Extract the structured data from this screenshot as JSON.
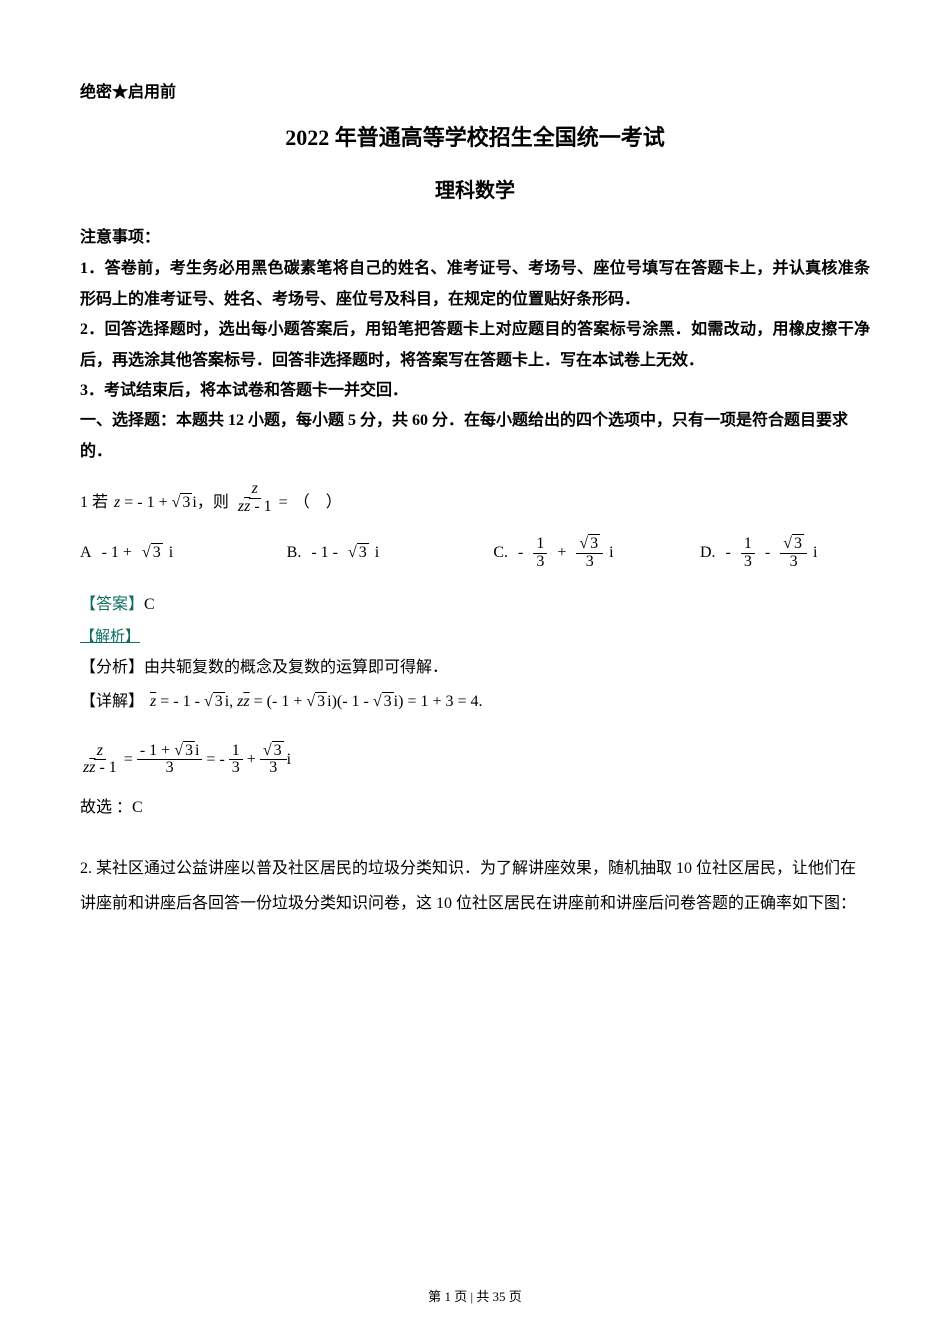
{
  "header": {
    "confidential": "绝密★启用前"
  },
  "titles": {
    "main": "2022 年普通高等学校招生全国统一考试",
    "sub": "理科数学"
  },
  "notes": {
    "label": "注意事项：",
    "items": [
      "1．答卷前，考生务必用黑色碳素笔将自己的姓名、准考证号、考场号、座位号填写在答题卡上，并认真核准条形码上的准考证号、姓名、考场号、座位号及科目，在规定的位置贴好条形码．",
      "2．回答选择题时，选出每小题答案后，用铅笔把答题卡上对应题目的答案标号涂黑．如需改动，用橡皮擦干净后，再选涂其他答案标号．回答非选择题时，将答案写在答题卡上．写在本试卷上无效．",
      "3．考试结束后，将本试卷和答题卡一并交回．"
    ]
  },
  "section1": "一、选择题：本题共 12 小题，每小题 5 分，共 60 分．在每小题给出的四个选项中，只有一项是符合题目要求的．",
  "q1": {
    "prefix": "1  若",
    "then": "，则",
    "paren": "（　）",
    "options": {
      "A": "A",
      "B": "B.",
      "C": "C.",
      "D": "D."
    },
    "answer_label": "【答案】",
    "answer_value": "C",
    "parse_label": "【解析】",
    "analysis_label": "【分析】",
    "analysis_text": "由共轭复数的概念及复数的运算即可得解．",
    "detail_label": "【详解】",
    "select_prefix": "故选 ：",
    "select_value": "C"
  },
  "q2": {
    "text": "2. 某社区通过公益讲座以普及社区居民的垃圾分类知识．为了解讲座效果，随机抽取 10 位社区居民，让他们在讲座前和讲座后各回答一份垃圾分类知识问卷，这 10 位社区居民在讲座前和讲座后问卷答题的正确率如下图："
  },
  "footer": {
    "page_prefix": "第 ",
    "page_num": "1",
    "page_mid": " 页 | 共 ",
    "page_total": "35",
    "page_suffix": " 页"
  },
  "colors": {
    "text": "#000000",
    "accent": "#0d6e60",
    "background": "#ffffff"
  }
}
